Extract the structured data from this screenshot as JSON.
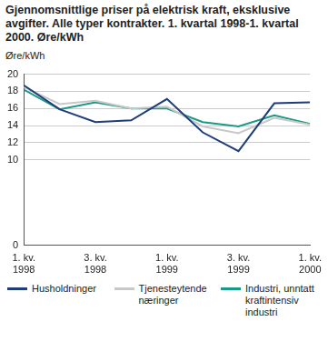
{
  "chart_data": {
    "type": "line",
    "title": "Gjennomsnittlige priser på elektrisk kraft, eksklusive avgifter. Alle typer kontrakter. 1. kvartal 1998-1. kvartal 2000. Øre/kWh",
    "y_label": "Øre/kWh",
    "categories": [
      "1. kv. 1998",
      null,
      "3. kv. 1998",
      null,
      "1. kv. 1999",
      null,
      "3. kv. 1999",
      null,
      "1. kv. 2000"
    ],
    "series": [
      {
        "name": "Husholdninger",
        "color": "#1f3d7a",
        "values": [
          18.7,
          15.9,
          14.4,
          14.6,
          17.1,
          13.2,
          11.0,
          16.6,
          16.7
        ]
      },
      {
        "name": "Tjenesteytende næringer",
        "color": "#c8c8c8",
        "values": [
          18.5,
          16.5,
          16.9,
          16.0,
          16.2,
          13.9,
          13.1,
          14.9,
          14.1
        ]
      },
      {
        "name": "Industri, unntatt kraftintensiv industri",
        "color": "#1a9985",
        "values": [
          18.2,
          15.9,
          16.7,
          16.0,
          16.0,
          14.4,
          13.9,
          15.2,
          14.2
        ]
      }
    ],
    "ylim": [
      0,
      20
    ],
    "yticks": [
      0,
      10,
      12,
      14,
      16,
      18,
      20
    ],
    "grid": true,
    "legend": "bottom"
  }
}
